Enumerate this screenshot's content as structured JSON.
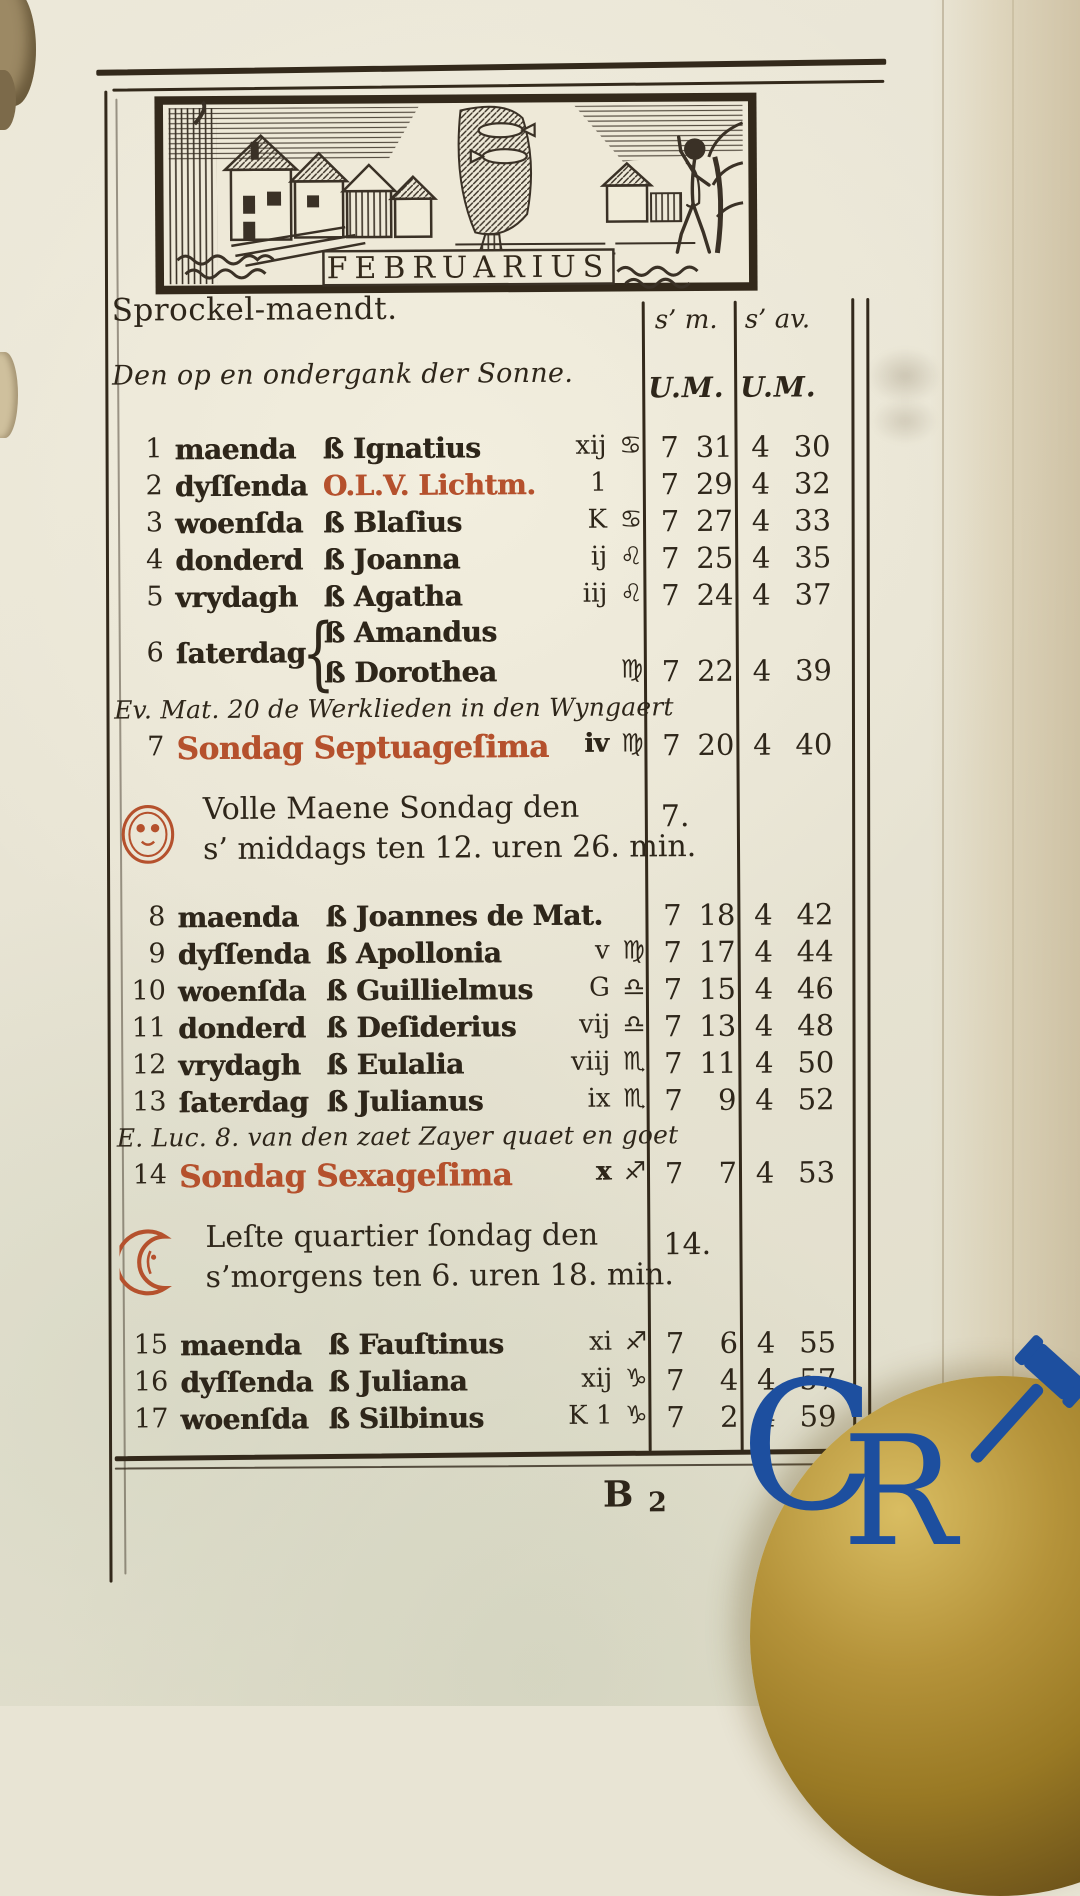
{
  "header": {
    "woodcut_caption": "FEBRUARIUS",
    "month_name": "Sprockel-maendt.",
    "sun_line": "Den op en ondergank der Sonne.",
    "col_morning": "s’ m.",
    "col_evening": "s’ av.",
    "col_unit_morning": "U.M.",
    "col_unit_evening": "U.M."
  },
  "calendar": {
    "rows": [
      {
        "type": "day",
        "num": "1",
        "weekday": "maenda",
        "name": "ß Ignatius",
        "letter": "xij",
        "zodiac": "♋",
        "rise_h": "7",
        "rise_m": "31",
        "set_h": "4",
        "set_m": "30"
      },
      {
        "type": "day",
        "num": "2",
        "weekday": "dyſſenda",
        "name": "O.L.V. Lichtm.",
        "name_red": true,
        "letter": "1",
        "zodiac": "",
        "rise_h": "7",
        "rise_m": "29",
        "set_h": "4",
        "set_m": "32"
      },
      {
        "type": "day",
        "num": "3",
        "weekday": "woenſda",
        "name": "ß Blaſius",
        "letter": "K",
        "zodiac": "♋",
        "rise_h": "7",
        "rise_m": "27",
        "set_h": "4",
        "set_m": "33"
      },
      {
        "type": "day",
        "num": "4",
        "weekday": "donderd",
        "name": "ß Joanna",
        "letter": "ij",
        "zodiac": "♌",
        "rise_h": "7",
        "rise_m": "25",
        "set_h": "4",
        "set_m": "35"
      },
      {
        "type": "day",
        "num": "5",
        "weekday": "vrydagh",
        "name": "ß Agatha",
        "letter": "iij",
        "zodiac": "♌",
        "rise_h": "7",
        "rise_m": "24",
        "set_h": "4",
        "set_m": "37"
      },
      {
        "type": "day2",
        "num": "6",
        "weekday": "ſaterdag",
        "name1": "ß Amandus",
        "name2": "ß Dorothea",
        "zodiac": "♍",
        "rise_h": "7",
        "rise_m": "22",
        "set_h": "4",
        "set_m": "39"
      },
      {
        "type": "gospel",
        "text": "Ev. Mat. 20 de Werklieden in den Wyngaert"
      },
      {
        "type": "sunday",
        "num": "7",
        "label": "Sondag Septuageſima",
        "letter": "iv",
        "zodiac": "♍",
        "rise_h": "7",
        "rise_m": "20",
        "set_h": "4",
        "set_m": "40"
      },
      {
        "type": "moon",
        "icon": "full-moon",
        "line1": "Volle  Maene  Sondag  den",
        "day": "7.",
        "line2": "s’ middags ten 12. uren 26. min."
      },
      {
        "type": "day",
        "num": "8",
        "weekday": "maenda",
        "name": "ß Joannes de Mat.",
        "letter": "",
        "zodiac": "",
        "rise_h": "7",
        "rise_m": "18",
        "set_h": "4",
        "set_m": "42"
      },
      {
        "type": "day",
        "num": "9",
        "weekday": "dyſſenda",
        "name": "ß Apollonia",
        "letter": "v",
        "zodiac": "♍",
        "rise_h": "7",
        "rise_m": "17",
        "set_h": "4",
        "set_m": "44"
      },
      {
        "type": "day",
        "num": "10",
        "weekday": "woenſda",
        "name": "ß Guillielmus",
        "letter": "G",
        "zodiac": "♎",
        "rise_h": "7",
        "rise_m": "15",
        "set_h": "4",
        "set_m": "46"
      },
      {
        "type": "day",
        "num": "11",
        "weekday": "donderd",
        "name": "ß Deſiderius",
        "letter": "vij",
        "zodiac": "♎",
        "rise_h": "7",
        "rise_m": "13",
        "set_h": "4",
        "set_m": "48"
      },
      {
        "type": "day",
        "num": "12",
        "weekday": "vrydagh",
        "name": "ß Eulalia",
        "letter": "viij",
        "zodiac": "♏",
        "rise_h": "7",
        "rise_m": "11",
        "set_h": "4",
        "set_m": "50"
      },
      {
        "type": "day",
        "num": "13",
        "weekday": "ſaterdag",
        "name": "ß Julianus",
        "letter": "ix",
        "zodiac": "♏",
        "rise_h": "7",
        "rise_m": "9",
        "set_h": "4",
        "set_m": "52"
      },
      {
        "type": "gospel",
        "text": "E. Luc. 8. van den zaet Zayer quaet en goet"
      },
      {
        "type": "sunday",
        "num": "14",
        "label": "Sondag Sexageſima",
        "letter": "x",
        "zodiac": "♐",
        "rise_h": "7",
        "rise_m": "7",
        "set_h": "4",
        "set_m": "53"
      },
      {
        "type": "moon",
        "icon": "last-quarter",
        "line1": "Leſte  quartier  ſondag  den",
        "day": "14.",
        "line2": "s’morgens ten 6. uren 18. min."
      },
      {
        "type": "day",
        "num": "15",
        "weekday": "maenda",
        "name": "ß Fauſtinus",
        "letter": "xi",
        "zodiac": "♐",
        "rise_h": "7",
        "rise_m": "6",
        "set_h": "4",
        "set_m": "55"
      },
      {
        "type": "day",
        "num": "16",
        "weekday": "dyſſenda",
        "name": "ß Juliana",
        "letter": "xij",
        "zodiac": "♑",
        "rise_h": "7",
        "rise_m": "4",
        "set_h": "4",
        "set_m": "57"
      },
      {
        "type": "day",
        "num": "17",
        "weekday": "woenſda",
        "name": "ß Silbinus",
        "letter": "K 1",
        "zodiac": "♑",
        "rise_h": "7",
        "rise_m": "2",
        "set_h": "4",
        "set_m": "59"
      }
    ]
  },
  "footer": {
    "signature_letter": "B",
    "signature_number": "2"
  },
  "watermark": {
    "letter_c": "C",
    "letter_r": "R",
    "icon": "gavel-icon"
  },
  "colors": {
    "ink": "#2e261a",
    "rubric_red": "#b5512d",
    "watermark_blue": "#1d4f9f",
    "paper": "#e8e4d4",
    "bowl_amber": "#a8862d"
  }
}
